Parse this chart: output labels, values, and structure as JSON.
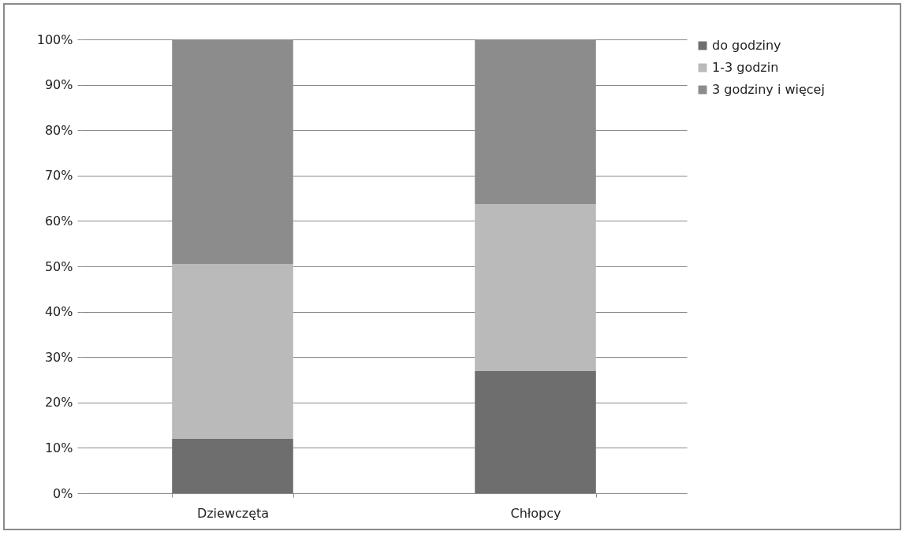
{
  "chart_data": {
    "type": "bar",
    "stacked": true,
    "categories": [
      "Dziewczęta",
      "Chłopcy"
    ],
    "series": [
      {
        "name": "do godziny",
        "color": "#6e6e6e",
        "values": [
          12,
          27
        ]
      },
      {
        "name": "1-3 godzin",
        "color": "#bababa",
        "values": [
          38.5,
          36.7
        ]
      },
      {
        "name": "3 godziny i więcej",
        "color": "#8c8c8c",
        "values": [
          49.5,
          36.3
        ]
      }
    ],
    "ylim": [
      0,
      100
    ],
    "yticks": [
      {
        "value": 0,
        "label": "0%"
      },
      {
        "value": 10,
        "label": "10%"
      },
      {
        "value": 20,
        "label": "20%"
      },
      {
        "value": 30,
        "label": "30%"
      },
      {
        "value": 40,
        "label": "40%"
      },
      {
        "value": 50,
        "label": "50%"
      },
      {
        "value": 60,
        "label": "60%"
      },
      {
        "value": 70,
        "label": "70%"
      },
      {
        "value": 80,
        "label": "80%"
      },
      {
        "value": 90,
        "label": "90%"
      },
      {
        "value": 100,
        "label": "100%"
      }
    ],
    "grid": "y",
    "legend": "right"
  }
}
